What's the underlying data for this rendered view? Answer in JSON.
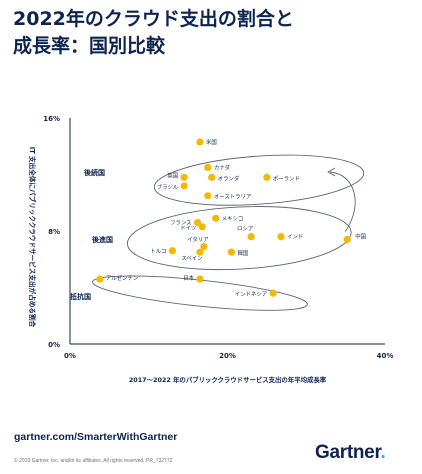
{
  "title_line1": "2022年のクラウド支出の割合と",
  "title_line2": "成長率：国別比較",
  "footer": {
    "link": "gartner.com/SmarterWithGartner",
    "copyright": "© 2019 Gartner, Inc. and/or its affiliates. All rights reserved. PR_732772",
    "logo": "Gartner",
    "logo_dot": "."
  },
  "chart_data": {
    "type": "scatter",
    "xlabel": "2017～2022 年のパブリッククラウドサービス支出の年平均成長率",
    "ylabel": "IT 支出全体にパブリッククラウドサービス支出が占める割合",
    "xlim": [
      0,
      40
    ],
    "ylim": [
      0,
      16
    ],
    "xticks": [
      {
        "v": 0,
        "label": "0%"
      },
      {
        "v": 20,
        "label": "20%"
      },
      {
        "v": 40,
        "label": "40%"
      }
    ],
    "yticks": [
      {
        "v": 0,
        "label": "0%"
      },
      {
        "v": 8,
        "label": "8%"
      },
      {
        "v": 16,
        "label": "16%"
      }
    ],
    "point_color": "#f5b800",
    "groups": [
      "後続国",
      "後進国",
      "抵抗国"
    ],
    "points": [
      {
        "label": "米国",
        "x": 16.5,
        "y": 14.3
      },
      {
        "label": "カナダ",
        "x": 17.5,
        "y": 12.5
      },
      {
        "label": "英国",
        "x": 14.5,
        "y": 11.8
      },
      {
        "label": "オランダ",
        "x": 18.0,
        "y": 11.8
      },
      {
        "label": "ポーランド",
        "x": 25.0,
        "y": 11.8
      },
      {
        "label": "ブラジル",
        "x": 14.5,
        "y": 11.2
      },
      {
        "label": "オーストラリア",
        "x": 17.5,
        "y": 10.5
      },
      {
        "label": "フランス",
        "x": 16.2,
        "y": 8.6
      },
      {
        "label": "メキシコ",
        "x": 18.5,
        "y": 8.9
      },
      {
        "label": "ドイツ",
        "x": 16.8,
        "y": 8.3
      },
      {
        "label": "ロシア",
        "x": 23.0,
        "y": 7.6
      },
      {
        "label": "インド",
        "x": 26.8,
        "y": 7.6
      },
      {
        "label": "中国",
        "x": 35.2,
        "y": 7.4
      },
      {
        "label": "イタリア",
        "x": 17.0,
        "y": 6.9
      },
      {
        "label": "トルコ",
        "x": 13.0,
        "y": 6.6
      },
      {
        "label": "スペイン",
        "x": 16.5,
        "y": 6.5
      },
      {
        "label": "韓国",
        "x": 20.5,
        "y": 6.5
      },
      {
        "label": "アルゼンチン",
        "x": 3.8,
        "y": 4.6
      },
      {
        "label": "日本",
        "x": 16.5,
        "y": 4.6
      },
      {
        "label": "インドネシア",
        "x": 25.8,
        "y": 3.6
      }
    ]
  }
}
